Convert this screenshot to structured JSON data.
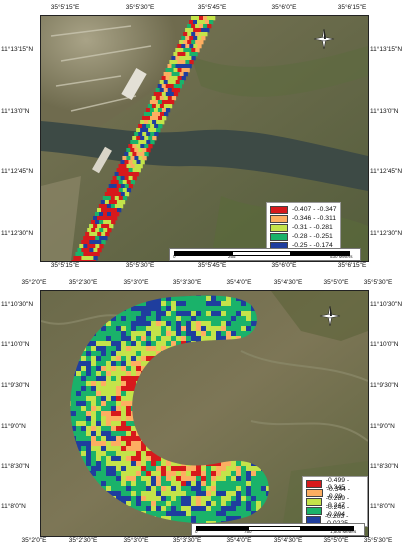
{
  "top_map": {
    "ticks_top": [
      "35°5'15\"E",
      "35°5'30\"E",
      "35°5'45\"E",
      "35°6'0\"E",
      "35°6'15\"E"
    ],
    "ticks_bottom": [
      "35°5'15\"E",
      "35°5'30\"E",
      "35°5'45\"E",
      "35°6'0\"E",
      "35°6'15\"E"
    ],
    "ticks_left": [
      "11°13'15\"N",
      "11°13'0\"N",
      "11°12'45\"N",
      "11°12'30\"N"
    ],
    "ticks_right": [
      "11°13'15\"N",
      "11°13'0\"N",
      "11°12'45\"N",
      "11°12'30\"N"
    ],
    "legend": [
      {
        "label": "-0.407 - -0.347",
        "color": "#d7191c"
      },
      {
        "label": "-0.346 - -0.311",
        "color": "#fdae61"
      },
      {
        "label": "-0.31 - -0.281",
        "color": "#c4e34a"
      },
      {
        "label": "-0.28 - -0.251",
        "color": "#1ab26a"
      },
      {
        "label": "-0.25 - -0.174",
        "color": "#1f3e9e"
      }
    ],
    "scale_labels": [
      "0",
      "265",
      "530 Meters"
    ]
  },
  "bottom_map": {
    "ticks_top": [
      "35°2'0\"E",
      "35°2'30\"E",
      "35°3'0\"E",
      "35°3'30\"E",
      "35°4'0\"E",
      "35°4'30\"E",
      "35°5'0\"E",
      "35°5'30\"E"
    ],
    "ticks_bottom": [
      "35°2'0\"E",
      "35°2'30\"E",
      "35°3'0\"E",
      "35°3'30\"E",
      "35°4'0\"E",
      "35°4'30\"E",
      "35°5'0\"E",
      "35°5'30\"E"
    ],
    "ticks_left": [
      "11°10'30\"N",
      "11°10'0\"N",
      "11°9'30\"N",
      "11°9'0\"N",
      "11°8'30\"N",
      "11°8'0\"N"
    ],
    "ticks_right": [
      "11°10'30\"N",
      "11°10'0\"N",
      "11°9'30\"N",
      "11°9'0\"N",
      "11°8'30\"N",
      "11°8'0\"N"
    ],
    "legend": [
      {
        "label": "-0.499 - -0.345",
        "color": "#d7191c"
      },
      {
        "label": "-0.344 - -0.29",
        "color": "#fdae61"
      },
      {
        "label": "-0.289 - -0.247",
        "color": "#c4e34a"
      },
      {
        "label": "-0.246 - -0.204",
        "color": "#1ab26a"
      },
      {
        "label": "-0.203 - -0.0225",
        "color": "#1f3e9e"
      }
    ],
    "scale_labels": [
      "0",
      "750",
      "1,500 Meters"
    ]
  },
  "colors": {
    "class_1": "#d7191c",
    "class_2": "#fdae61",
    "class_3": "#c4e34a",
    "class_4": "#1ab26a",
    "class_5": "#1f3e9e",
    "terrain": "#6d6a4c",
    "river": "#3d4a45"
  }
}
